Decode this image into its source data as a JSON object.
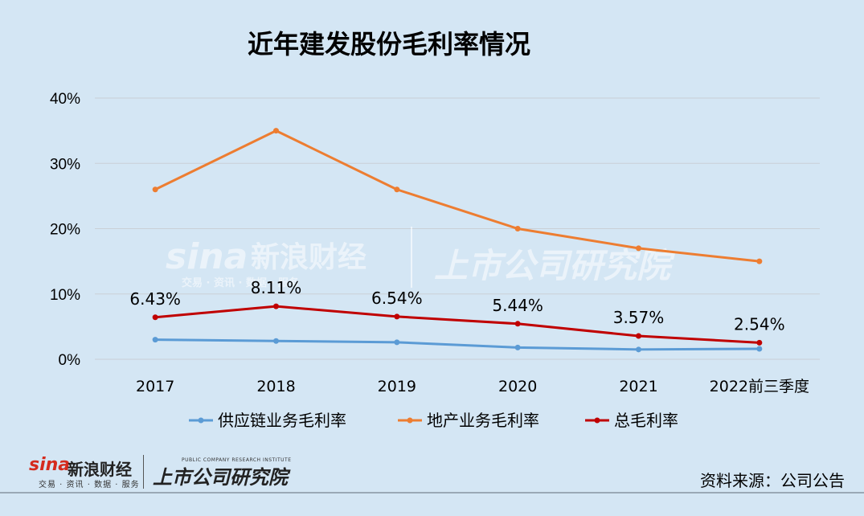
{
  "title": "近年建发股份毛利率情况",
  "chart_data": {
    "type": "line",
    "categories": [
      "2017",
      "2018",
      "2019",
      "2020",
      "2021",
      "2022前三季度"
    ],
    "ylim": [
      0,
      40
    ],
    "yticks": [
      "0%",
      "10%",
      "20%",
      "30%",
      "40%"
    ],
    "grid": true,
    "legend_position": "bottom",
    "series": [
      {
        "name": "供应链业务毛利率",
        "color": "#5b9bd5",
        "values": [
          3.0,
          2.8,
          2.6,
          1.8,
          1.5,
          1.6
        ],
        "labels": []
      },
      {
        "name": "地产业务毛利率",
        "color": "#ed7d31",
        "values": [
          26,
          35,
          26,
          20,
          17,
          15
        ],
        "labels": []
      },
      {
        "name": "总毛利率",
        "color": "#c00000",
        "values": [
          6.43,
          8.11,
          6.54,
          5.44,
          3.57,
          2.54
        ],
        "labels": [
          "6.43%",
          "8.11%",
          "6.54%",
          "5.44%",
          "3.57%",
          "2.54%"
        ]
      }
    ]
  },
  "watermark": {
    "sina": "sina",
    "sina_name": "新浪财经",
    "sina_sub": "交易 · 资讯 · 数据 · 服务",
    "ssgs": "上市公司研究院"
  },
  "footer": {
    "sina_logo": "sina",
    "sina_name": "新浪财经",
    "sina_sub": "交易 · 资讯 · 数据 · 服务",
    "ssgs_logo": "上市公司研究院",
    "ssgs_sub": "PUBLIC COMPANY RESEARCH INSTITUTE",
    "source": "资料来源：公司公告"
  }
}
